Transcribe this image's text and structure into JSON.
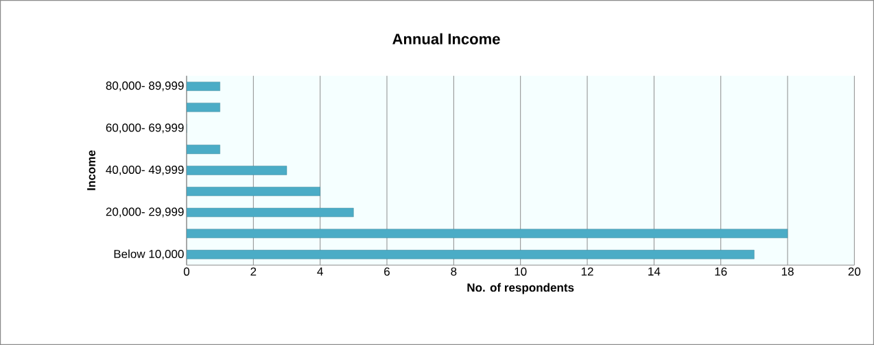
{
  "chart_data": {
    "type": "bar",
    "orientation": "horizontal",
    "title": "Annual Income",
    "xlabel": "No. of respondents",
    "ylabel": "Income",
    "categories": [
      "80,000- 89,999",
      null,
      "60,000- 69,999",
      null,
      "40,000- 49,999",
      null,
      "20,000- 29,999",
      null,
      "Below 10,000"
    ],
    "values": [
      1,
      1,
      0,
      1,
      3,
      4,
      5,
      18,
      17
    ],
    "color": "#4bacc6",
    "xlim": [
      0,
      20
    ],
    "xticks": [
      0,
      2,
      4,
      6,
      8,
      10,
      12,
      14,
      16,
      18,
      20
    ],
    "grid": "x"
  }
}
